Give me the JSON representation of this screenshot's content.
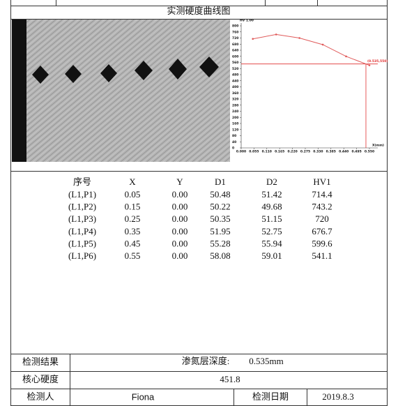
{
  "header": {
    "title": "实测硬度曲线图"
  },
  "chart_data": {
    "type": "line",
    "y_label": "HV 1.00",
    "x_label": "X(mm)",
    "annotation": "(0.535,550)",
    "x": [
      0.05,
      0.15,
      0.25,
      0.35,
      0.45,
      0.55
    ],
    "values": [
      714.4,
      743.2,
      720,
      676.7,
      599.6,
      541.1
    ],
    "color": "#e05a5a",
    "xlim": [
      0,
      0.55
    ],
    "ylim": [
      0,
      800
    ],
    "yticks": [
      0,
      40,
      80,
      120,
      160,
      200,
      240,
      280,
      320,
      360,
      400,
      440,
      480,
      520,
      560,
      600,
      640,
      680,
      720,
      760,
      800
    ],
    "xticks": [
      {
        "value": 0,
        "label": "0.000"
      },
      {
        "value": 0.055,
        "label": "0.055"
      },
      {
        "value": 0.11,
        "label": "0.110"
      },
      {
        "value": 0.165,
        "label": "0.165"
      },
      {
        "value": 0.22,
        "label": "0.220"
      },
      {
        "value": 0.275,
        "label": "0.275"
      },
      {
        "value": 0.33,
        "label": "0.330"
      },
      {
        "value": 0.385,
        "label": "0.385"
      },
      {
        "value": 0.44,
        "label": "0.440"
      },
      {
        "value": 0.495,
        "label": "0.495"
      },
      {
        "value": 0.55,
        "label": "0.550"
      }
    ],
    "marker": {
      "x": 0.535,
      "y": 550,
      "color": "#e03030"
    }
  },
  "table": {
    "columns": [
      "序号",
      "X",
      "Y",
      "D1",
      "D2",
      "HV1"
    ],
    "rows": [
      [
        "(L1,P1)",
        "0.05",
        "0.00",
        "50.48",
        "51.42",
        "714.4"
      ],
      [
        "(L1,P2)",
        "0.15",
        "0.00",
        "50.22",
        "49.68",
        "743.2"
      ],
      [
        "(L1,P3)",
        "0.25",
        "0.00",
        "50.35",
        "51.15",
        "720"
      ],
      [
        "(L1,P4)",
        "0.35",
        "0.00",
        "51.95",
        "52.75",
        "676.7"
      ],
      [
        "(L1,P5)",
        "0.45",
        "0.00",
        "55.28",
        "55.94",
        "599.6"
      ],
      [
        "(L1,P6)",
        "0.55",
        "0.00",
        "58.08",
        "59.01",
        "541.1"
      ]
    ]
  },
  "footer": {
    "result_label": "检测结果",
    "depth_label": "渗氮层深度:",
    "depth_value": "0.535mm",
    "core_label": "核心硬度",
    "core_value": "451.8",
    "inspector_label": "检测人",
    "inspector": "Fiona",
    "date_label": "检测日期",
    "date": "2019.8.3"
  }
}
